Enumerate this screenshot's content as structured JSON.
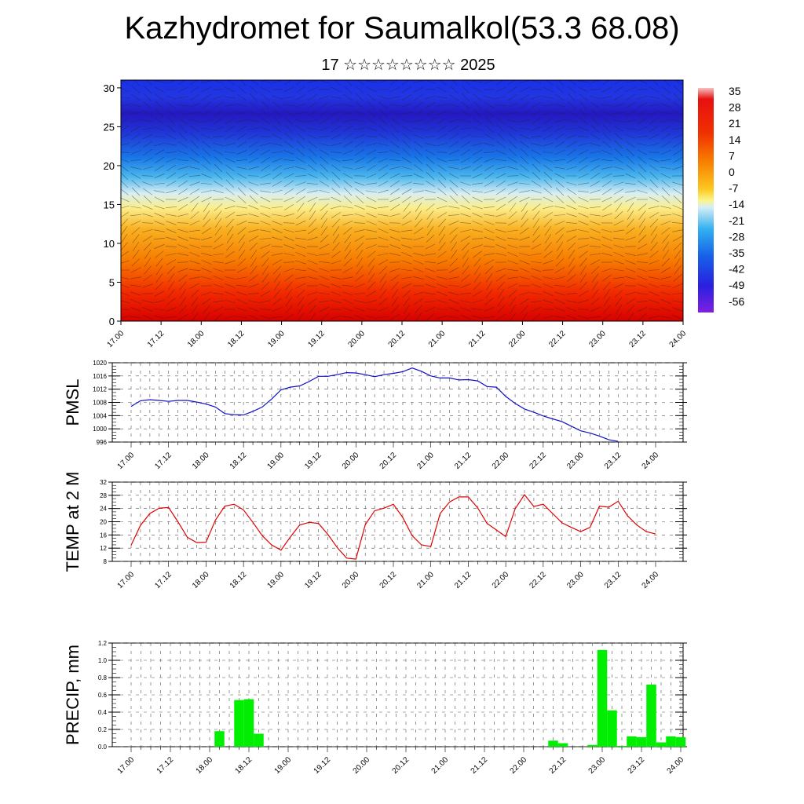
{
  "header": {
    "title": "Kazhydromet for Saumalkol(53.3 68.08)",
    "subtitle": "17 ☆☆☆☆☆☆☆☆ 2025"
  },
  "time_labels": [
    "17.00",
    "17.12",
    "18.00",
    "18.12",
    "19.00",
    "19.12",
    "20.00",
    "20.12",
    "21.00",
    "21.12",
    "22.00",
    "22.12",
    "23.00",
    "23.12",
    "24.00"
  ],
  "chart_data": [
    {
      "type": "heatmap",
      "description": "Temperature cross-section (height vs time) with wind barbs",
      "x_ticks": [
        "17.00",
        "17.12",
        "18.00",
        "18.12",
        "19.00",
        "19.12",
        "20.00",
        "20.12",
        "21.00",
        "21.12",
        "22.00",
        "22.12",
        "23.00",
        "23.12",
        "24.00"
      ],
      "y_ticks": [
        0,
        5,
        10,
        15,
        20,
        25,
        30
      ],
      "ylim": [
        0,
        31
      ],
      "colorbar_labels": [
        "35",
        "28",
        "21",
        "14",
        "7",
        "0",
        "-7",
        "-14",
        "-21",
        "-28",
        "-35",
        "-42",
        "-49",
        "-56"
      ]
    },
    {
      "type": "line",
      "ylabel": "PMSL",
      "ylim": [
        996,
        1020
      ],
      "y_ticks": [
        996,
        1000,
        1004,
        1008,
        1012,
        1016,
        1020
      ],
      "x_ticks": [
        "17.00",
        "17.12",
        "18.00",
        "18.12",
        "19.00",
        "19.12",
        "20.00",
        "20.12",
        "21.00",
        "21.12",
        "22.00",
        "22.12",
        "23.00",
        "23.12",
        "24.00"
      ],
      "color": "#1010c8",
      "x_hours": [
        0,
        3,
        6,
        9,
        12,
        15,
        18,
        21,
        24,
        27,
        30,
        33,
        36,
        39,
        42,
        45,
        48,
        51,
        54,
        57,
        60,
        63,
        66,
        69,
        72,
        75,
        78,
        81,
        84,
        87,
        90,
        93,
        96,
        99,
        102,
        105,
        108,
        111,
        114,
        117,
        120,
        123,
        126,
        129,
        132,
        135,
        138,
        141,
        144,
        147,
        150,
        153,
        156,
        159,
        162,
        165,
        168
      ],
      "values": [
        1006.8,
        1008.5,
        1008.8,
        1008.6,
        1008.3,
        1008.6,
        1008.6,
        1008.1,
        1007.5,
        1006.6,
        1004.6,
        1004.3,
        1004.2,
        1005.3,
        1006.6,
        1009.0,
        1011.8,
        1012.6,
        1013.0,
        1014.3,
        1015.9,
        1015.9,
        1016.4,
        1017.0,
        1016.9,
        1016.4,
        1015.8,
        1016.4,
        1016.8,
        1017.3,
        1018.4,
        1017.4,
        1016.0,
        1015.4,
        1015.4,
        1014.8,
        1014.9,
        1014.5,
        1012.8,
        1012.6,
        1009.8,
        1007.7,
        1006.0,
        1005.0,
        1003.9,
        1003.0,
        1002.2,
        1000.8,
        999.4,
        998.7,
        997.8,
        996.7,
        996.2,
        null,
        null,
        null,
        null
      ]
    },
    {
      "type": "line",
      "ylabel": "TEMP at 2 M",
      "ylim": [
        8,
        32
      ],
      "y_ticks": [
        8,
        12,
        16,
        20,
        24,
        28,
        32
      ],
      "x_ticks": [
        "17.00",
        "17.12",
        "18.00",
        "18.12",
        "19.00",
        "19.12",
        "20.00",
        "20.12",
        "21.00",
        "21.12",
        "22.00",
        "22.12",
        "23.00",
        "23.12",
        "24.00"
      ],
      "color": "#e00000",
      "x_hours": [
        0,
        3,
        6,
        9,
        12,
        15,
        18,
        21,
        24,
        27,
        30,
        33,
        36,
        39,
        42,
        45,
        48,
        51,
        54,
        57,
        60,
        63,
        66,
        69,
        72,
        75,
        78,
        81,
        84,
        87,
        90,
        93,
        96,
        99,
        102,
        105,
        108,
        111,
        114,
        117,
        120,
        123,
        126,
        129,
        132,
        135,
        138,
        141,
        144,
        147,
        150,
        153,
        156,
        159,
        162,
        165,
        168
      ],
      "values": [
        12.9,
        18.9,
        22.5,
        24.1,
        24.3,
        20.0,
        15.3,
        13.7,
        13.8,
        20.5,
        24.7,
        25.3,
        23.6,
        19.8,
        15.8,
        13.0,
        11.4,
        15.4,
        19.0,
        19.8,
        19.5,
        16.2,
        12.2,
        9.0,
        8.7,
        19.1,
        23.3,
        24.1,
        25.3,
        21.3,
        15.8,
        13.0,
        12.5,
        22.5,
        26.0,
        27.5,
        27.5,
        24.2,
        19.5,
        17.5,
        15.5,
        23.9,
        28.2,
        24.6,
        25.3,
        22.5,
        19.7,
        18.3,
        17.0,
        18.3,
        24.7,
        24.4,
        26.2,
        21.8,
        19.0,
        17.0,
        16.3
      ]
    },
    {
      "type": "bar",
      "ylabel": "PRECIP, mm",
      "ylim": [
        0,
        1.2
      ],
      "y_ticks": [
        "0.0",
        "0.2",
        "0.4",
        "0.6",
        "0.8",
        "1.0",
        "1.2"
      ],
      "x_ticks": [
        "17.00",
        "17.12",
        "18.00",
        "18.12",
        "19.00",
        "19.12",
        "20.00",
        "20.12",
        "21.00",
        "21.12",
        "22.00",
        "22.12",
        "23.00",
        "23.12",
        "24.00"
      ],
      "color": "#00ee00",
      "x_hours": [
        0,
        3,
        6,
        9,
        12,
        15,
        18,
        21,
        24,
        27,
        30,
        33,
        36,
        39,
        42,
        45,
        48,
        51,
        54,
        57,
        60,
        63,
        66,
        69,
        72,
        75,
        78,
        81,
        84,
        87,
        90,
        93,
        96,
        99,
        102,
        105,
        108,
        111,
        114,
        117,
        120,
        123,
        126,
        129,
        132,
        135,
        138,
        141,
        144,
        147,
        150,
        153,
        156,
        159,
        162,
        165,
        168
      ],
      "values": [
        0,
        0,
        0,
        0,
        0,
        0,
        0,
        0,
        0,
        0.18,
        0,
        0.54,
        0.55,
        0.15,
        0,
        0,
        0,
        0,
        0,
        0,
        0,
        0,
        0,
        0,
        0,
        0,
        0,
        0,
        0,
        0,
        0,
        0,
        0,
        0,
        0,
        0,
        0,
        0,
        0,
        0,
        0,
        0,
        0,
        0.07,
        0.04,
        0,
        0,
        0.02,
        1.12,
        0.42,
        0.01,
        0.12,
        0.11,
        0.72,
        0.05,
        0.12,
        0.11
      ]
    }
  ]
}
